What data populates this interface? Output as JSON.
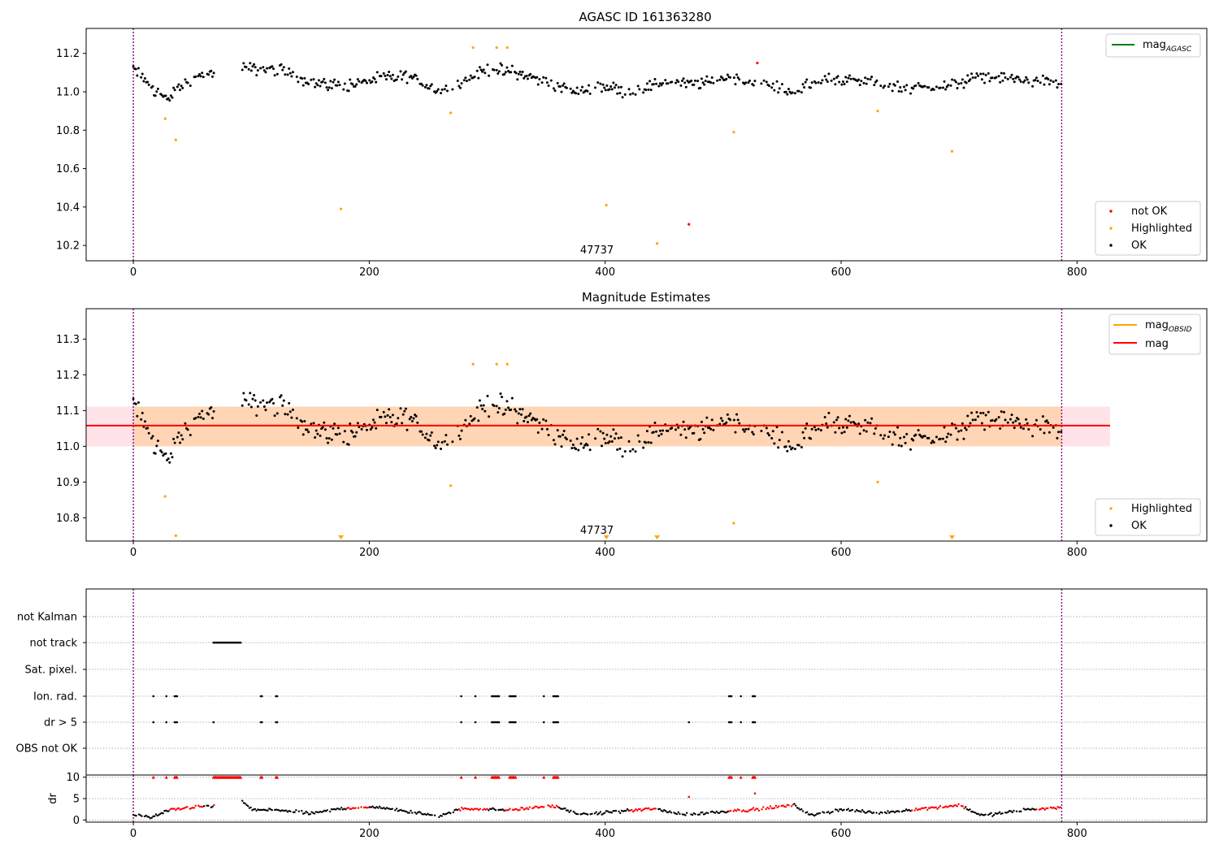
{
  "chart_data": [
    {
      "type": "scatter",
      "title": "AGASC ID 161363280",
      "xlabel": "",
      "ylabel": "",
      "xlim": [
        -40,
        910
      ],
      "ylim": [
        10.12,
        11.33
      ],
      "xticks": [
        0,
        200,
        400,
        600,
        800
      ],
      "yticks": [
        10.2,
        10.4,
        10.6,
        10.8,
        11.0,
        11.2
      ],
      "grid": false,
      "vlines": [
        0,
        787
      ],
      "obsid_label": {
        "text": "47737",
        "x": 393
      },
      "lines": [
        {
          "name": "mag_AGASC",
          "name_main": "mag",
          "name_sub": "AGASC",
          "color": "#008000",
          "y": null
        }
      ],
      "series": [
        {
          "name": "not OK",
          "color": "#ff0000",
          "points": [
            [
              471,
              10.31
            ],
            [
              529,
              11.15
            ]
          ]
        },
        {
          "name": "Highlighted",
          "color": "#ffa500",
          "points": [
            [
              27,
              10.86
            ],
            [
              36,
              10.75
            ],
            [
              176,
              10.39
            ],
            [
              269,
              10.89
            ],
            [
              288,
              11.23
            ],
            [
              308,
              11.23
            ],
            [
              317,
              11.23
            ],
            [
              401,
              10.41
            ],
            [
              444,
              10.21
            ],
            [
              509,
              10.79
            ],
            [
              631,
              10.9
            ],
            [
              694,
              10.69
            ]
          ]
        },
        {
          "name": "OK",
          "color": "#000000",
          "generator": "mag_track"
        }
      ],
      "legend": "upper-right: line legend; lower-right: scatter legend (not OK, Highlighted, OK)"
    },
    {
      "type": "scatter",
      "title": "Magnitude Estimates",
      "xlabel": "",
      "ylabel": "",
      "xlim": [
        -40,
        910
      ],
      "ylim": [
        10.735,
        11.385
      ],
      "xticks": [
        0,
        200,
        400,
        600,
        800
      ],
      "yticks": [
        10.8,
        10.9,
        11.0,
        11.1,
        11.2,
        11.3
      ],
      "grid": false,
      "vlines": [
        0,
        787
      ],
      "obsid_label": {
        "text": "47737",
        "x": 393
      },
      "band": {
        "x": [
          -40,
          828
        ],
        "y": [
          11.0,
          11.111
        ],
        "color": "#ffc0cb"
      },
      "obsid_band": {
        "x": [
          0,
          787
        ],
        "y": [
          11.0,
          11.111
        ],
        "color": "#ffa500"
      },
      "lines": [
        {
          "name": "mag_OBSID",
          "name_main": "mag",
          "name_sub": "OBSID",
          "color": "#ffa500",
          "y": 11.058,
          "x": [
            0,
            787
          ]
        },
        {
          "name": "mag",
          "color": "#ff0000",
          "y": 11.058,
          "x": [
            -40,
            828
          ]
        }
      ],
      "series": [
        {
          "name": "Highlighted",
          "color": "#ffa500",
          "points": [
            [
              27,
              10.86
            ],
            [
              36,
              10.75
            ],
            [
              269,
              10.89
            ],
            [
              288,
              11.23
            ],
            [
              308,
              11.23
            ],
            [
              317,
              11.23
            ],
            [
              509,
              10.785
            ],
            [
              631,
              10.9
            ]
          ],
          "offscale_markers": [
            176,
            401,
            444,
            694
          ]
        },
        {
          "name": "OK",
          "color": "#000000",
          "generator": "mag_track"
        }
      ],
      "legend": "upper-right: line legend; lower-right: scatter legend (Highlighted, OK)"
    },
    {
      "type": "scatter",
      "title": "",
      "xlabel": "",
      "ylabel": "",
      "xlim": [
        -40,
        910
      ],
      "xticks": [
        0,
        200,
        400,
        600,
        800
      ],
      "vlines": [
        0,
        787
      ],
      "flag_rows": [
        "not Kalman",
        "not track",
        "Sat. pixel.",
        "Ion. rad.",
        "dr > 5",
        "OBS not OK"
      ],
      "flags": {
        "not Kalman": [],
        "not track": [
          [
            68,
            91,
            1
          ]
        ],
        "Sat. pixel.": [],
        "Ion. rad.": [
          [
            17,
            17,
            1
          ],
          [
            28,
            28,
            1
          ],
          [
            35,
            37,
            1
          ],
          [
            108,
            109,
            1
          ],
          [
            121,
            122,
            1
          ],
          [
            278,
            278,
            1
          ],
          [
            290,
            290,
            1
          ],
          [
            304,
            310,
            1
          ],
          [
            319,
            324,
            1
          ],
          [
            348,
            348,
            1
          ],
          [
            356,
            360,
            1
          ],
          [
            505,
            507,
            1
          ],
          [
            515,
            515,
            1
          ],
          [
            525,
            527,
            1
          ]
        ],
        "dr > 5": [
          [
            17,
            17,
            1
          ],
          [
            28,
            28,
            1
          ],
          [
            35,
            37,
            1
          ],
          [
            68,
            68,
            1
          ],
          [
            108,
            109,
            1
          ],
          [
            121,
            122,
            1
          ],
          [
            278,
            278,
            1
          ],
          [
            290,
            290,
            1
          ],
          [
            304,
            310,
            1
          ],
          [
            319,
            324,
            1
          ],
          [
            348,
            348,
            1
          ],
          [
            356,
            360,
            1
          ],
          [
            471,
            471,
            1
          ],
          [
            505,
            507,
            1
          ],
          [
            515,
            515,
            1
          ],
          [
            525,
            527,
            1
          ]
        ],
        "OBS not OK": []
      },
      "grid": "dotted horizontal at each flag row"
    },
    {
      "type": "scatter",
      "title": "",
      "xlabel": "",
      "ylabel": "dr",
      "xlim": [
        -40,
        910
      ],
      "ylim": [
        -0.5,
        10.5
      ],
      "xticks": [
        0,
        200,
        400,
        600,
        800
      ],
      "xticklabels": [
        "0",
        "200",
        "400",
        "600",
        "800"
      ],
      "yticks": [
        0,
        5,
        10
      ],
      "vlines": [
        0,
        787
      ],
      "grid": "dotted horizontal",
      "capped_value": 10,
      "capped_marker": "red triangle at y=10 for dr > 10",
      "series": [
        {
          "name": "dr OK",
          "color": "#000000",
          "generator": "dr_track"
        },
        {
          "name": "dr not OK",
          "color": "#ff0000",
          "generator": "dr_track_red"
        }
      ]
    }
  ]
}
